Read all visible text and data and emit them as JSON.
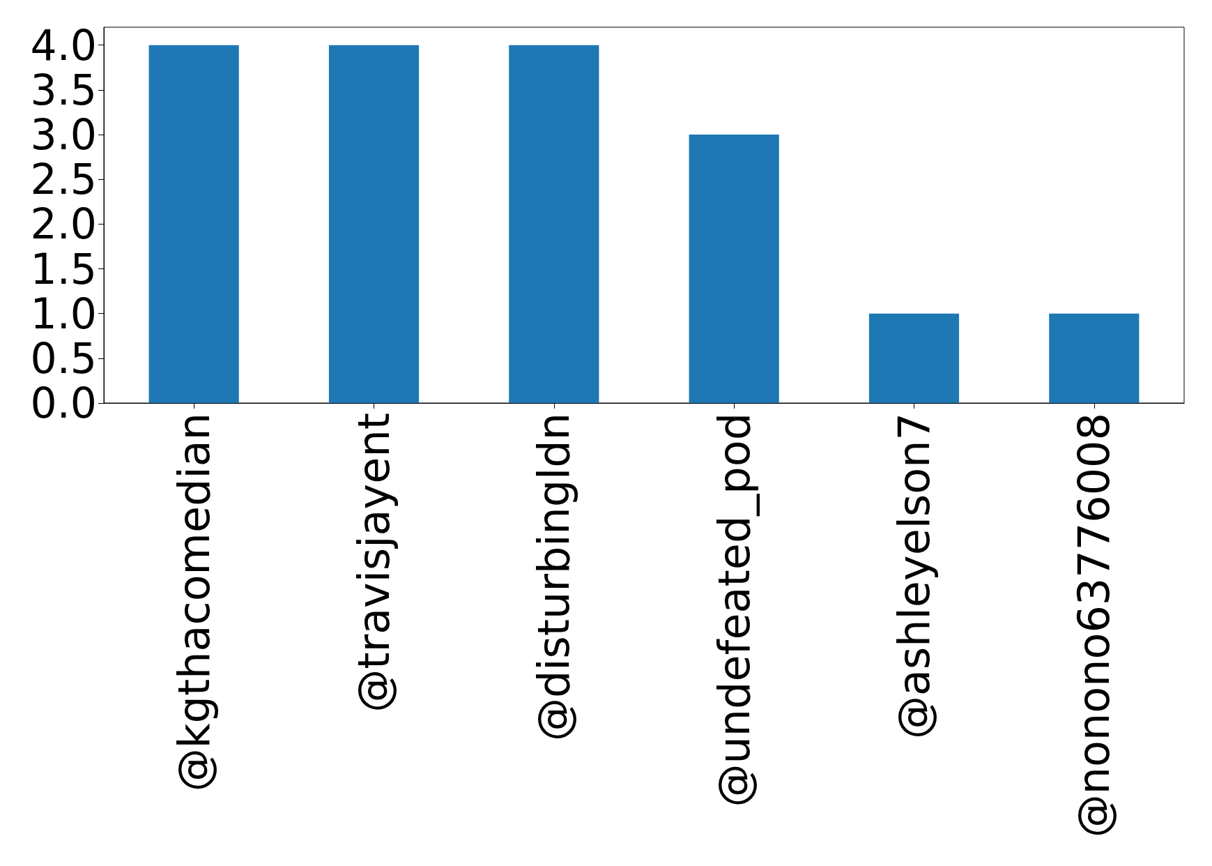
{
  "chart_data": {
    "type": "bar",
    "categories": [
      "@kgthacomedian",
      "@travisjayent",
      "@disturbingldn",
      "@undefeated_pod",
      "@ashleyelson7",
      "@nonono63776008"
    ],
    "values": [
      4,
      4,
      4,
      3,
      1,
      1
    ],
    "color": "#1f77b4",
    "ylim": [
      0,
      4.2
    ],
    "yticks": [
      {
        "value": 0,
        "label": "0.0"
      },
      {
        "value": 0.5,
        "label": "0.5"
      },
      {
        "value": 1,
        "label": "1.0"
      },
      {
        "value": 1.5,
        "label": "1.5"
      },
      {
        "value": 2,
        "label": "2.0"
      },
      {
        "value": 2.5,
        "label": "2.5"
      },
      {
        "value": 3,
        "label": "3.0"
      },
      {
        "value": 3.5,
        "label": "3.5"
      },
      {
        "value": 4,
        "label": "4.0"
      }
    ],
    "grid": false
  }
}
